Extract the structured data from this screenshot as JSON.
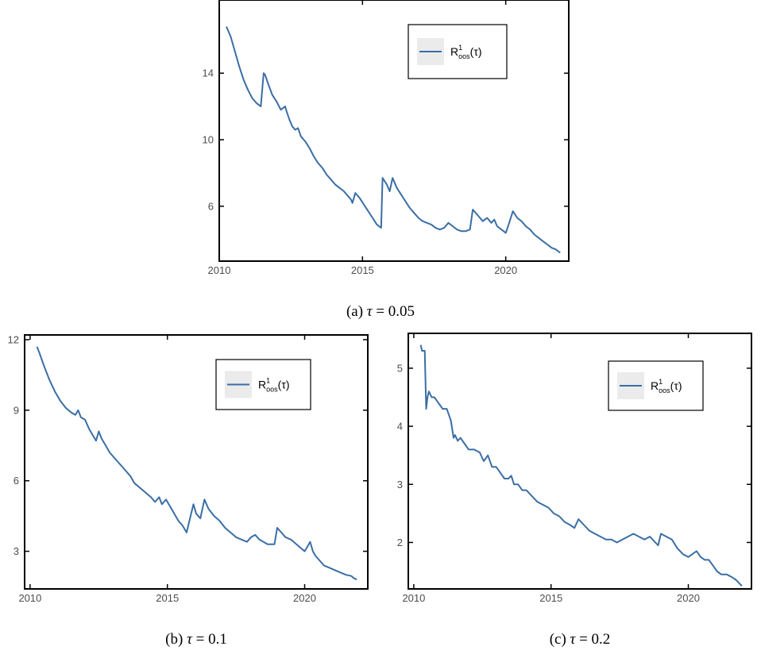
{
  "chart_data": [
    {
      "type": "line",
      "caption": "(a) τ = 0.05",
      "caption_parts": {
        "prefix": "(a) ",
        "symbol": "τ",
        "rest": " = 0.05"
      },
      "legend": {
        "main": "R",
        "sup": "1",
        "sub": "oos",
        "arg": "(τ)",
        "placement": "top-right"
      },
      "color": "#3a6ea5",
      "xlim": [
        2010.0,
        2022.2
      ],
      "ylim": [
        2.7,
        18.4
      ],
      "xticks": [
        2010,
        2015,
        2020
      ],
      "yticks": [
        6,
        10,
        14
      ],
      "grid": false,
      "series": [
        {
          "x": [
            2010.25,
            2010.4,
            2010.55,
            2010.7,
            2010.85,
            2011.0,
            2011.15,
            2011.3,
            2011.45,
            2011.55,
            2011.6,
            2011.7,
            2011.85,
            2012.0,
            2012.15,
            2012.3,
            2012.35,
            2012.45,
            2012.55,
            2012.65,
            2012.75,
            2012.85,
            2013.0,
            2013.15,
            2013.3,
            2013.45,
            2013.6,
            2013.75,
            2013.9,
            2014.05,
            2014.2,
            2014.35,
            2014.5,
            2014.6,
            2014.65,
            2014.75,
            2014.9,
            2015.05,
            2015.2,
            2015.35,
            2015.5,
            2015.65,
            2015.7,
            2015.85,
            2015.95,
            2016.05,
            2016.2,
            2016.35,
            2016.5,
            2016.65,
            2016.8,
            2016.95,
            2017.1,
            2017.25,
            2017.4,
            2017.55,
            2017.7,
            2017.85,
            2018.0,
            2018.15,
            2018.3,
            2018.45,
            2018.6,
            2018.75,
            2018.85,
            2018.95,
            2019.05,
            2019.2,
            2019.35,
            2019.5,
            2019.6,
            2019.7,
            2019.85,
            2020.0,
            2020.1,
            2020.25,
            2020.4,
            2020.55,
            2020.7,
            2020.85,
            2021.0,
            2021.15,
            2021.3,
            2021.45,
            2021.6,
            2021.75,
            2021.9
          ],
          "y": [
            16.8,
            16.2,
            15.3,
            14.4,
            13.6,
            13.0,
            12.5,
            12.2,
            12.0,
            14.0,
            13.9,
            13.4,
            12.7,
            12.3,
            11.8,
            12.0,
            11.7,
            11.2,
            10.8,
            10.6,
            10.7,
            10.2,
            9.9,
            9.5,
            9.0,
            8.6,
            8.3,
            7.9,
            7.6,
            7.3,
            7.1,
            6.9,
            6.6,
            6.4,
            6.2,
            6.8,
            6.5,
            6.1,
            5.7,
            5.3,
            4.9,
            4.7,
            7.7,
            7.3,
            6.9,
            7.7,
            7.1,
            6.7,
            6.3,
            5.9,
            5.6,
            5.3,
            5.1,
            5.0,
            4.9,
            4.7,
            4.6,
            4.7,
            5.0,
            4.8,
            4.6,
            4.5,
            4.5,
            4.6,
            5.8,
            5.6,
            5.4,
            5.1,
            5.3,
            5.0,
            5.2,
            4.8,
            4.6,
            4.4,
            4.9,
            5.7,
            5.3,
            5.1,
            4.8,
            4.6,
            4.3,
            4.1,
            3.9,
            3.7,
            3.5,
            3.4,
            3.2
          ]
        }
      ]
    },
    {
      "type": "line",
      "caption": "(b) τ = 0.1",
      "caption_parts": {
        "prefix": "(b) ",
        "symbol": "τ",
        "rest": " = 0.1"
      },
      "legend": {
        "main": "R",
        "sup": "1",
        "sub": "oos",
        "arg": "(τ)",
        "placement": "top-right"
      },
      "color": "#3a6ea5",
      "xlim": [
        2009.8,
        2022.3
      ],
      "ylim": [
        1.4,
        12.2
      ],
      "xticks": [
        2010,
        2015,
        2020
      ],
      "yticks": [
        3,
        6,
        9,
        12
      ],
      "grid": false,
      "series": [
        {
          "x": [
            2010.25,
            2010.35,
            2010.5,
            2010.7,
            2010.9,
            2011.1,
            2011.3,
            2011.5,
            2011.65,
            2011.75,
            2011.85,
            2012.0,
            2012.15,
            2012.3,
            2012.4,
            2012.5,
            2012.6,
            2012.75,
            2012.9,
            2013.05,
            2013.2,
            2013.35,
            2013.5,
            2013.65,
            2013.8,
            2014.0,
            2014.2,
            2014.4,
            2014.55,
            2014.7,
            2014.8,
            2014.95,
            2015.1,
            2015.25,
            2015.4,
            2015.55,
            2015.7,
            2015.95,
            2016.05,
            2016.2,
            2016.35,
            2016.5,
            2016.7,
            2016.9,
            2017.1,
            2017.3,
            2017.5,
            2017.7,
            2017.9,
            2018.05,
            2018.2,
            2018.35,
            2018.5,
            2018.65,
            2018.8,
            2018.9,
            2019.0,
            2019.15,
            2019.3,
            2019.5,
            2019.6,
            2019.8,
            2020.0,
            2020.1,
            2020.2,
            2020.3,
            2020.4,
            2020.55,
            2020.7,
            2020.9,
            2021.1,
            2021.3,
            2021.5,
            2021.7,
            2021.8,
            2021.9
          ],
          "y": [
            11.7,
            11.4,
            10.9,
            10.3,
            9.8,
            9.4,
            9.1,
            8.9,
            8.8,
            9.0,
            8.7,
            8.6,
            8.2,
            7.9,
            7.7,
            8.1,
            7.8,
            7.5,
            7.2,
            7.0,
            6.8,
            6.6,
            6.4,
            6.2,
            5.9,
            5.7,
            5.5,
            5.3,
            5.1,
            5.3,
            5.0,
            5.2,
            4.9,
            4.6,
            4.3,
            4.1,
            3.8,
            5.0,
            4.6,
            4.4,
            5.2,
            4.8,
            4.5,
            4.3,
            4.0,
            3.8,
            3.6,
            3.5,
            3.4,
            3.6,
            3.7,
            3.5,
            3.4,
            3.3,
            3.3,
            3.3,
            4.0,
            3.8,
            3.6,
            3.5,
            3.4,
            3.2,
            3.0,
            3.2,
            3.4,
            3.0,
            2.8,
            2.6,
            2.4,
            2.3,
            2.2,
            2.1,
            2.0,
            1.95,
            1.85,
            1.8
          ]
        }
      ]
    },
    {
      "type": "line",
      "caption": "(c) τ = 0.2",
      "caption_parts": {
        "prefix": "(c) ",
        "symbol": "τ",
        "rest": " = 0.2"
      },
      "legend": {
        "main": "R",
        "sup": "1",
        "sub": "oos",
        "arg": "(τ)",
        "placement": "top-right"
      },
      "color": "#3a6ea5",
      "xlim": [
        2009.8,
        2022.3
      ],
      "ylim": [
        1.2,
        5.6
      ],
      "xticks": [
        2010,
        2015,
        2020
      ],
      "yticks": [
        2,
        3,
        4,
        5
      ],
      "grid": false,
      "series": [
        {
          "x": [
            2010.25,
            2010.3,
            2010.4,
            2010.45,
            2010.5,
            2010.55,
            2010.65,
            2010.75,
            2010.9,
            2011.05,
            2011.2,
            2011.35,
            2011.45,
            2011.5,
            2011.6,
            2011.7,
            2011.85,
            2012.0,
            2012.2,
            2012.4,
            2012.55,
            2012.7,
            2012.85,
            2013.0,
            2013.15,
            2013.3,
            2013.45,
            2013.55,
            2013.65,
            2013.8,
            2013.95,
            2014.1,
            2014.3,
            2014.5,
            2014.7,
            2014.9,
            2015.1,
            2015.3,
            2015.5,
            2015.7,
            2015.85,
            2016.0,
            2016.2,
            2016.4,
            2016.6,
            2016.8,
            2017.0,
            2017.2,
            2017.4,
            2017.6,
            2017.8,
            2018.0,
            2018.2,
            2018.4,
            2018.6,
            2018.8,
            2018.9,
            2019.0,
            2019.2,
            2019.4,
            2019.6,
            2019.8,
            2020.0,
            2020.15,
            2020.3,
            2020.45,
            2020.6,
            2020.75,
            2020.9,
            2021.05,
            2021.2,
            2021.4,
            2021.6,
            2021.75,
            2021.85,
            2021.95
          ],
          "y": [
            5.4,
            5.3,
            5.3,
            4.3,
            4.5,
            4.6,
            4.5,
            4.5,
            4.4,
            4.3,
            4.3,
            4.1,
            3.8,
            3.85,
            3.75,
            3.8,
            3.7,
            3.6,
            3.6,
            3.55,
            3.4,
            3.5,
            3.3,
            3.3,
            3.2,
            3.1,
            3.1,
            3.15,
            3.0,
            3.0,
            2.9,
            2.9,
            2.8,
            2.7,
            2.65,
            2.6,
            2.5,
            2.45,
            2.35,
            2.3,
            2.25,
            2.4,
            2.3,
            2.2,
            2.15,
            2.1,
            2.05,
            2.05,
            2.0,
            2.05,
            2.1,
            2.15,
            2.1,
            2.05,
            2.1,
            2.0,
            1.95,
            2.15,
            2.1,
            2.05,
            1.9,
            1.8,
            1.75,
            1.8,
            1.85,
            1.75,
            1.7,
            1.7,
            1.6,
            1.5,
            1.45,
            1.45,
            1.4,
            1.35,
            1.3,
            1.25
          ]
        }
      ]
    }
  ]
}
